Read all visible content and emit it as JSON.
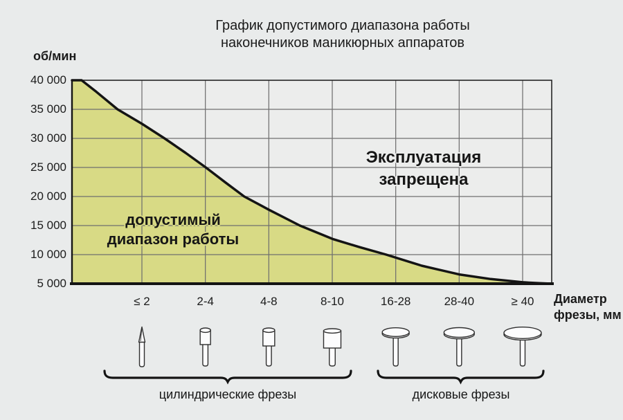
{
  "page": {
    "background": "#e9ebeb"
  },
  "chart_data": {
    "type": "area",
    "title": "График допустимого диапазона работы наконечников маникюрных аппаратов",
    "title_lines": [
      "График допустимого диапазона работы",
      "наконечников маникюрных аппаратов"
    ],
    "y_axis": {
      "label": "об/мин",
      "min": 5000,
      "max": 40000,
      "tick_values": [
        40000,
        35000,
        30000,
        25000,
        20000,
        15000,
        10000,
        5000
      ],
      "tick_labels": [
        "40 000",
        "35 000",
        "30 000",
        "25 000",
        "20 000",
        "15 000",
        "10 000",
        "5 000"
      ]
    },
    "x_axis": {
      "label": "Диаметр фрезы, мм",
      "label_lines": [
        "Диаметр",
        "фрезы, мм"
      ],
      "categories": [
        "≤ 2",
        "2-4",
        "4-8",
        "8-10",
        "16-28",
        "28-40",
        "≥ 40"
      ]
    },
    "regions": {
      "allowed": {
        "lines": [
          "допустимый",
          "диапазон работы"
        ]
      },
      "forbidden": {
        "lines": [
          "Эксплуатация",
          "запрещена"
        ]
      }
    },
    "rpm_limit_at_category": {
      "≤ 2": 32500,
      "2-4": 25000,
      "4-8": 17700,
      "8-10": 12700,
      "16-28": 9500,
      "28-40": 6600,
      "≥ 40": 5250
    },
    "curve_points_frac_rpm": [
      [
        0.0,
        40000
      ],
      [
        0.02,
        40000
      ],
      [
        0.051,
        38000
      ],
      [
        0.095,
        35000
      ],
      [
        0.146,
        32500
      ],
      [
        0.193,
        30000
      ],
      [
        0.237,
        27500
      ],
      [
        0.279,
        25000
      ],
      [
        0.32,
        22400
      ],
      [
        0.359,
        20000
      ],
      [
        0.411,
        17700
      ],
      [
        0.475,
        15000
      ],
      [
        0.543,
        12700
      ],
      [
        0.599,
        11300
      ],
      [
        0.655,
        10000
      ],
      [
        0.729,
        8100
      ],
      [
        0.807,
        6600
      ],
      [
        0.873,
        5800
      ],
      [
        0.939,
        5250
      ],
      [
        0.974,
        5080
      ],
      [
        1.0,
        5000
      ]
    ],
    "grid": true,
    "legend": false,
    "colors": {
      "area_fill": "#d8da85",
      "plot_bg": "#ecedec",
      "grid": "#6f6f6f",
      "line": "#141414",
      "icon_fill": "#fcfcfd",
      "icon_stroke": "#2f2f2f"
    },
    "tool_groups": [
      {
        "label": "цилиндрические фрезы",
        "category_span": [
          0,
          3
        ]
      },
      {
        "label": "дисковые фрезы",
        "category_span": [
          4,
          6
        ]
      }
    ],
    "icons": [
      {
        "name": "taper-burr-icon",
        "type": "taper",
        "category": 0
      },
      {
        "name": "small-cylinder-burr-icon",
        "type": "cyl-s",
        "category": 1
      },
      {
        "name": "medium-cylinder-burr-icon",
        "type": "cyl-m",
        "category": 2
      },
      {
        "name": "large-cylinder-burr-icon",
        "type": "cyl-l",
        "category": 3
      },
      {
        "name": "small-disc-burr-icon",
        "type": "disc-s",
        "category": 4
      },
      {
        "name": "medium-disc-burr-icon",
        "type": "disc-m",
        "category": 5
      },
      {
        "name": "large-disc-burr-icon",
        "type": "disc-l",
        "category": 6
      }
    ]
  }
}
